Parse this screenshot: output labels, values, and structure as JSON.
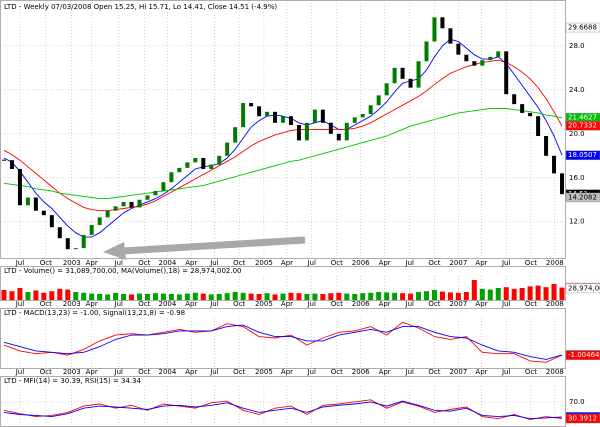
{
  "chart_data": [
    {
      "type": "candlestick",
      "title": "LTD - Weekly 07/03/2008 Open 15.25, Hi 15.71, Lo 14.41, Close 14.51 (-4.9%)",
      "close": [
        17.6,
        16.8,
        13.5,
        14.2,
        13.0,
        12.6,
        11.5,
        10.5,
        9.5,
        9.6,
        10.8,
        11.7,
        12.4,
        13.0,
        13.4,
        13.8,
        13.3,
        14.0,
        14.4,
        14.8,
        15.6,
        16.5,
        16.9,
        17.4,
        17.8,
        16.8,
        17.2,
        18.0,
        19.2,
        20.6,
        22.8,
        22.5,
        21.6,
        22.0,
        21.0,
        21.6,
        20.8,
        19.4,
        21.0,
        22.2,
        21.0,
        20.0,
        19.4,
        21.0,
        21.5,
        21.8,
        22.6,
        23.5,
        24.6,
        26.0,
        25.0,
        24.2,
        26.6,
        28.4,
        30.6,
        29.6,
        28.2,
        27.2,
        26.6,
        26.2,
        26.7,
        27.0,
        27.5,
        23.6,
        22.7,
        21.9,
        21.6,
        19.8,
        18.0,
        16.4,
        14.51
      ],
      "up_color": "#007a00",
      "down_color": "#000000",
      "series": [
        {
          "color": "#0000ff",
          "values": [
            17.8,
            17.4,
            16.6,
            15.6,
            14.6,
            13.8,
            13.2,
            12.4,
            11.6,
            11.0,
            10.6,
            10.6,
            11.0,
            11.6,
            12.2,
            12.8,
            13.2,
            13.5,
            13.8,
            14.1,
            14.5,
            15.0,
            15.6,
            16.2,
            16.8,
            17.0,
            17.1,
            17.3,
            17.8,
            18.6,
            19.6,
            20.6,
            21.2,
            21.6,
            21.7,
            21.6,
            21.4,
            21.0,
            20.8,
            21.0,
            21.2,
            20.8,
            20.4,
            20.4,
            20.8,
            21.2,
            21.6,
            22.2,
            22.9,
            23.8,
            24.6,
            24.8,
            25.0,
            25.8,
            27.0,
            28.0,
            28.6,
            28.4,
            27.8,
            27.2,
            26.8,
            26.8,
            27.0,
            26.4,
            25.4,
            24.4,
            23.4,
            22.4,
            21.2,
            19.8,
            18.05
          ]
        },
        {
          "color": "#ff0000",
          "values": [
            18.5,
            18.1,
            17.6,
            17.0,
            16.4,
            15.8,
            15.2,
            14.6,
            14.1,
            13.7,
            13.3,
            13.1,
            13.0,
            13.0,
            13.1,
            13.2,
            13.3,
            13.4,
            13.6,
            13.9,
            14.3,
            14.7,
            15.1,
            15.5,
            15.9,
            16.3,
            16.7,
            17.1,
            17.5,
            17.9,
            18.4,
            18.9,
            19.3,
            19.6,
            19.9,
            20.1,
            20.3,
            20.4,
            20.4,
            20.4,
            20.4,
            20.4,
            20.4,
            20.4,
            20.5,
            20.7,
            21.0,
            21.4,
            21.8,
            22.2,
            22.6,
            23.0,
            23.4,
            23.9,
            24.5,
            25.0,
            25.5,
            25.8,
            26.1,
            26.3,
            26.5,
            26.6,
            26.7,
            26.5,
            26.1,
            25.6,
            25.0,
            24.2,
            23.2,
            22.0,
            20.7
          ]
        },
        {
          "color": "#00c000",
          "values": [
            15.5,
            15.4,
            15.3,
            15.2,
            15.0,
            14.9,
            14.8,
            14.6,
            14.5,
            14.4,
            14.3,
            14.2,
            14.1,
            14.1,
            14.2,
            14.3,
            14.4,
            14.5,
            14.6,
            14.7,
            14.8,
            14.9,
            15.0,
            15.1,
            15.2,
            15.3,
            15.5,
            15.7,
            15.9,
            16.1,
            16.3,
            16.5,
            16.7,
            16.9,
            17.1,
            17.3,
            17.5,
            17.6,
            17.8,
            18.0,
            18.2,
            18.4,
            18.6,
            18.8,
            19.0,
            19.2,
            19.4,
            19.6,
            19.8,
            20.1,
            20.4,
            20.7,
            20.9,
            21.1,
            21.3,
            21.5,
            21.7,
            21.9,
            22.0,
            22.1,
            22.2,
            22.3,
            22.3,
            22.3,
            22.2,
            22.1,
            22.0,
            21.9,
            21.7,
            21.6,
            21.46
          ]
        }
      ],
      "xlim": [
        -0.25,
        70.375
      ],
      "xticks": [
        {
          "value": 2,
          "label": "Jul"
        },
        {
          "value": 5.25,
          "label": "Oct"
        },
        {
          "value": 8.5,
          "label": "2003"
        },
        {
          "value": 11,
          "label": "Apr"
        },
        {
          "value": 14.4,
          "label": "Jul"
        },
        {
          "value": 17.6,
          "label": "Oct"
        },
        {
          "value": 20.5,
          "label": "2004"
        },
        {
          "value": 23.5,
          "label": "Apr"
        },
        {
          "value": 26.4,
          "label": "Jul"
        },
        {
          "value": 29.5,
          "label": "Oct"
        },
        {
          "value": 32.6,
          "label": "2005"
        },
        {
          "value": 35.5,
          "label": "Apr"
        },
        {
          "value": 38.6,
          "label": "Jul"
        },
        {
          "value": 41.75,
          "label": "Oct"
        },
        {
          "value": 44.75,
          "label": "2006"
        },
        {
          "value": 47.75,
          "label": "Apr"
        },
        {
          "value": 50.9,
          "label": "Jul"
        },
        {
          "value": 54,
          "label": "Oct"
        },
        {
          "value": 57,
          "label": "2007"
        },
        {
          "value": 59.9,
          "label": "Apr"
        },
        {
          "value": 63,
          "label": "Jul"
        },
        {
          "value": 66.1,
          "label": "Oct"
        },
        {
          "value": 69.1,
          "label": "2008"
        }
      ],
      "ylim": [
        8.7,
        31.9
      ],
      "yticks": [
        {
          "value": 12,
          "label": "12.0"
        },
        {
          "value": 16,
          "label": "16.0"
        },
        {
          "value": 20,
          "label": "20.0"
        },
        {
          "value": 24,
          "label": "24.0"
        },
        {
          "value": 28,
          "label": "28.0"
        }
      ],
      "grid": true,
      "annotations": [
        {
          "value": 29.6688,
          "label": "29.6688",
          "color": "#ffffff"
        },
        {
          "value": 21.4627,
          "label": "21.4627",
          "color": "#00c000"
        },
        {
          "value": 20.7332,
          "label": "20.7332",
          "color": "#ff0000"
        },
        {
          "value": 18.0507,
          "label": "18.0507",
          "color": "#0000ff"
        },
        {
          "value": 14.51,
          "label": "14.51",
          "color": "#000000"
        },
        {
          "value": 14.2082,
          "label": "14.2082",
          "color": "#c0c0c0"
        }
      ]
    },
    {
      "type": "bar",
      "title": "LTD - Volume() = 31,089,700.00, MA(Volume(),18) = 28,974,002.00",
      "values": [
        25000000,
        22000000,
        30000000,
        20000000,
        24000000,
        18000000,
        22000000,
        28000000,
        26000000,
        20000000,
        18000000,
        16000000,
        15000000,
        14000000,
        18000000,
        15000000,
        14000000,
        16000000,
        15000000,
        17000000,
        16000000,
        15000000,
        14000000,
        16000000,
        18000000,
        16000000,
        14000000,
        15000000,
        17000000,
        20000000,
        18000000,
        16000000,
        15000000,
        17000000,
        14000000,
        16000000,
        18000000,
        17000000,
        15000000,
        16000000,
        15000000,
        17000000,
        18000000,
        16000000,
        15000000,
        17000000,
        18000000,
        20000000,
        19000000,
        18000000,
        17000000,
        16000000,
        20000000,
        22000000,
        25000000,
        21000000,
        19000000,
        18000000,
        20000000,
        50000000,
        28000000,
        26000000,
        30000000,
        32000000,
        28000000,
        30000000,
        34000000,
        36000000,
        32000000,
        40000000,
        31089700
      ],
      "up_color": "#00a000",
      "down_color": "#ff0000",
      "ylim": [
        0,
        60000000
      ],
      "annotations": [
        {
          "value": 31089700,
          "label": "31,089,70",
          "color": "#ff9090"
        },
        {
          "value": 28974002,
          "label": "28,974,00",
          "color": "#ffffff"
        }
      ]
    },
    {
      "type": "line",
      "title": "LTD - MACD(13,23) = -1.00, Signal(13,21,8) = -0.98",
      "x": [
        0,
        2,
        4,
        6,
        8,
        10,
        12,
        14,
        16,
        18,
        20,
        22,
        24,
        26,
        28,
        30,
        32,
        34,
        36,
        38,
        40,
        42,
        44,
        46,
        48,
        50,
        52,
        54,
        56,
        58,
        60,
        62,
        64,
        66,
        68,
        70
      ],
      "series": [
        {
          "color": "#ff0000",
          "values": [
            -0.3,
            -0.7,
            -0.9,
            -0.8,
            -1.0,
            -0.6,
            0.0,
            0.4,
            0.5,
            0.4,
            0.6,
            0.8,
            0.6,
            0.7,
            1.2,
            1.0,
            0.3,
            0.2,
            0.4,
            -0.3,
            0.2,
            0.6,
            0.7,
            1.0,
            0.4,
            1.3,
            0.9,
            0.3,
            0.1,
            0.3,
            -0.8,
            -0.9,
            -0.9,
            -1.4,
            -1.5,
            -1.0
          ]
        },
        {
          "color": "#0000ff",
          "values": [
            -0.1,
            -0.4,
            -0.7,
            -0.8,
            -0.9,
            -0.8,
            -0.4,
            0.1,
            0.4,
            0.4,
            0.5,
            0.7,
            0.7,
            0.7,
            1.0,
            1.1,
            0.6,
            0.3,
            0.3,
            0.0,
            0.0,
            0.4,
            0.6,
            0.8,
            0.6,
            1.0,
            1.0,
            0.6,
            0.3,
            0.2,
            -0.3,
            -0.7,
            -0.8,
            -1.1,
            -1.3,
            -0.98
          ]
        }
      ],
      "ylim": [
        -1.9,
        1.6
      ],
      "annotations": [
        {
          "value": -0.97697,
          "label": "-0.97697",
          "color": "#0000ff"
        },
        {
          "value": -1.00464,
          "label": "-1.00464",
          "color": "#ff0000"
        }
      ]
    },
    {
      "type": "line",
      "title": "LTD - MFI(14) = 30.39, RSI(15) = 34.34",
      "x": [
        0,
        2,
        4,
        6,
        8,
        10,
        12,
        14,
        16,
        18,
        20,
        22,
        24,
        26,
        28,
        30,
        32,
        34,
        36,
        38,
        40,
        42,
        44,
        46,
        48,
        50,
        52,
        54,
        56,
        58,
        60,
        62,
        64,
        66,
        68,
        70
      ],
      "series": [
        {
          "color": "#ff0000",
          "values": [
            50,
            42,
            35,
            38,
            45,
            60,
            65,
            55,
            62,
            50,
            65,
            60,
            55,
            68,
            72,
            50,
            40,
            55,
            60,
            40,
            62,
            65,
            70,
            75,
            55,
            70,
            60,
            45,
            52,
            58,
            35,
            30,
            40,
            28,
            35,
            30.39
          ]
        },
        {
          "color": "#0000ff",
          "values": [
            45,
            40,
            38,
            35,
            42,
            55,
            60,
            58,
            55,
            52,
            60,
            62,
            58,
            62,
            68,
            55,
            45,
            50,
            55,
            45,
            58,
            62,
            65,
            70,
            60,
            72,
            62,
            50,
            48,
            55,
            38,
            35,
            38,
            30,
            32,
            34.34
          ]
        }
      ],
      "ylim": [
        15,
        108
      ],
      "yticks": [
        {
          "value": 70,
          "label": "70.0"
        }
      ],
      "annotations": [
        {
          "value": 34.3402,
          "label": "34.3402",
          "color": "#0000ff"
        },
        {
          "value": 30.3912,
          "label": "30.3912",
          "color": "#ff0000"
        }
      ]
    }
  ]
}
